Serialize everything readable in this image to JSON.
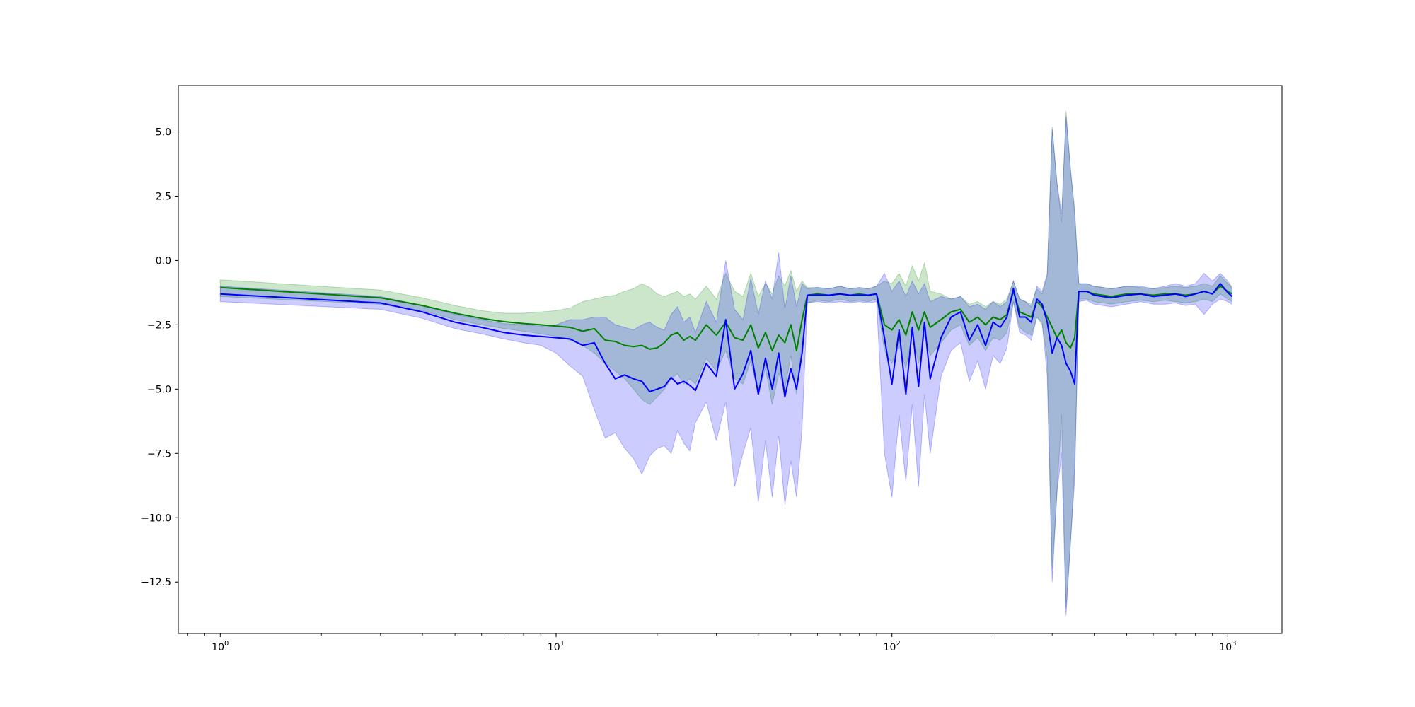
{
  "chart_data": {
    "type": "line",
    "title": "",
    "xlabel": "",
    "ylabel": "",
    "x_scale": "log",
    "xlim": [
      0.75,
      1450
    ],
    "ylim": [
      -14.5,
      6.8
    ],
    "grid": false,
    "legend": "none",
    "x_ticks": [
      {
        "value": 1,
        "base": "10",
        "exp": "0"
      },
      {
        "value": 10,
        "base": "10",
        "exp": "1"
      },
      {
        "value": 100,
        "base": "10",
        "exp": "2"
      },
      {
        "value": 1000,
        "base": "10",
        "exp": "3"
      }
    ],
    "y_ticks": [
      {
        "value": 5.0,
        "label": "5.0"
      },
      {
        "value": 2.5,
        "label": "2.5"
      },
      {
        "value": 0.0,
        "label": "0.0"
      },
      {
        "value": -2.5,
        "label": "−2.5"
      },
      {
        "value": -5.0,
        "label": "−5.0"
      },
      {
        "value": -7.5,
        "label": "−7.5"
      },
      {
        "value": -10.0,
        "label": "−10.0"
      },
      {
        "value": -12.5,
        "label": "−12.5"
      }
    ],
    "series": [
      {
        "color": "#008000",
        "band_color": "#008000",
        "x": [
          1,
          3,
          4,
          5,
          6,
          7,
          8,
          9,
          10,
          11,
          12,
          13,
          14,
          15,
          16,
          17,
          18,
          19,
          20,
          21,
          22,
          23,
          24,
          25,
          26,
          28,
          30,
          32,
          34,
          36,
          38,
          40,
          42,
          44,
          46,
          48,
          50,
          52,
          54,
          56,
          60,
          65,
          70,
          75,
          80,
          85,
          90,
          95,
          100,
          105,
          110,
          115,
          120,
          125,
          130,
          140,
          150,
          160,
          170,
          180,
          190,
          200,
          210,
          220,
          230,
          240,
          250,
          260,
          270,
          280,
          290,
          300,
          310,
          320,
          330,
          340,
          350,
          360,
          380,
          400,
          450,
          500,
          550,
          600,
          650,
          700,
          750,
          800,
          850,
          900,
          950,
          1000,
          1030
        ],
        "y": [
          -1.05,
          -1.45,
          -1.75,
          -2.05,
          -2.25,
          -2.38,
          -2.45,
          -2.5,
          -2.55,
          -2.6,
          -2.75,
          -2.65,
          -3.1,
          -3.15,
          -3.3,
          -3.35,
          -3.3,
          -3.45,
          -3.4,
          -3.2,
          -2.9,
          -2.8,
          -3.1,
          -2.95,
          -3.1,
          -2.5,
          -2.9,
          -2.4,
          -3.0,
          -3.1,
          -2.5,
          -3.4,
          -2.8,
          -3.5,
          -2.9,
          -3.2,
          -2.5,
          -3.5,
          -2.3,
          -1.35,
          -1.3,
          -1.35,
          -1.3,
          -1.35,
          -1.3,
          -1.35,
          -1.3,
          -2.5,
          -2.7,
          -2.3,
          -2.9,
          -2.0,
          -2.7,
          -2.0,
          -2.6,
          -2.3,
          -2.0,
          -1.9,
          -2.4,
          -2.2,
          -2.5,
          -2.2,
          -2.3,
          -2.1,
          -1.2,
          -2.0,
          -2.1,
          -2.2,
          -1.6,
          -1.8,
          -2.2,
          -2.6,
          -3.0,
          -2.7,
          -3.2,
          -3.4,
          -3.0,
          -1.2,
          -1.2,
          -1.3,
          -1.4,
          -1.3,
          -1.3,
          -1.35,
          -1.3,
          -1.3,
          -1.35,
          -1.3,
          -1.2,
          -1.3,
          -1.0,
          -1.2,
          -1.3
        ],
        "lower": [
          -1.4,
          -1.7,
          -1.95,
          -2.3,
          -2.5,
          -2.65,
          -2.75,
          -2.85,
          -2.95,
          -3.1,
          -3.3,
          -3.6,
          -4.0,
          -4.3,
          -4.6,
          -5.0,
          -5.4,
          -5.6,
          -5.3,
          -5.0,
          -4.6,
          -4.4,
          -4.8,
          -4.6,
          -4.8,
          -3.8,
          -4.3,
          -3.5,
          -4.6,
          -4.8,
          -3.9,
          -5.2,
          -4.2,
          -5.6,
          -4.4,
          -5.0,
          -3.7,
          -5.2,
          -3.2,
          -1.65,
          -1.55,
          -1.6,
          -1.5,
          -1.6,
          -1.55,
          -1.6,
          -1.5,
          -3.5,
          -4.0,
          -3.3,
          -4.2,
          -2.8,
          -4.0,
          -2.9,
          -3.7,
          -3.2,
          -2.7,
          -2.5,
          -3.3,
          -3.0,
          -3.5,
          -3.0,
          -3.1,
          -2.8,
          -1.6,
          -2.6,
          -2.8,
          -2.9,
          -2.2,
          -2.5,
          -3.8,
          -12.0,
          -9.0,
          -6.0,
          -13.5,
          -11.0,
          -8.0,
          -1.5,
          -1.5,
          -1.6,
          -1.7,
          -1.6,
          -1.55,
          -1.6,
          -1.55,
          -1.6,
          -1.65,
          -1.6,
          -1.5,
          -1.6,
          -1.3,
          -1.5,
          -1.6
        ],
        "upper": [
          -0.75,
          -1.15,
          -1.45,
          -1.75,
          -1.95,
          -2.05,
          -2.05,
          -2.0,
          -1.95,
          -1.85,
          -1.6,
          -1.5,
          -1.4,
          -1.35,
          -1.2,
          -1.1,
          -0.9,
          -1.05,
          -1.3,
          -1.4,
          -1.3,
          -1.2,
          -1.4,
          -1.3,
          -1.5,
          -1.0,
          -1.5,
          -0.5,
          -1.2,
          -1.4,
          -0.5,
          -1.4,
          -0.9,
          -1.3,
          -0.6,
          -1.0,
          -0.4,
          -1.2,
          -0.8,
          -1.05,
          -1.05,
          -1.1,
          -1.0,
          -1.1,
          -1.05,
          -1.1,
          -1.0,
          -0.8,
          -0.9,
          -0.5,
          -1.0,
          -0.2,
          -0.8,
          -0.1,
          -1.2,
          -1.3,
          -1.5,
          -1.4,
          -1.7,
          -1.6,
          -1.8,
          -1.6,
          -1.7,
          -1.5,
          -0.8,
          -1.5,
          -1.6,
          -1.7,
          -1.1,
          -1.3,
          -0.6,
          5.2,
          3.0,
          1.5,
          5.8,
          3.5,
          2.0,
          -0.9,
          -0.9,
          -1.0,
          -1.1,
          -1.0,
          -1.05,
          -1.1,
          -1.05,
          -1.0,
          -1.05,
          -1.0,
          -0.9,
          -1.0,
          -0.6,
          -0.9,
          -1.0
        ]
      },
      {
        "color": "#0000ff",
        "band_color": "#0000ff",
        "x": [
          1,
          3,
          4,
          5,
          6,
          7,
          8,
          9,
          10,
          11,
          12,
          13,
          14,
          15,
          16,
          17,
          18,
          19,
          20,
          21,
          22,
          23,
          24,
          25,
          26,
          28,
          30,
          32,
          34,
          36,
          38,
          40,
          42,
          44,
          46,
          48,
          50,
          52,
          54,
          56,
          60,
          65,
          70,
          75,
          80,
          85,
          90,
          95,
          100,
          105,
          110,
          115,
          120,
          125,
          130,
          140,
          150,
          160,
          170,
          180,
          190,
          200,
          210,
          220,
          230,
          240,
          250,
          260,
          270,
          280,
          290,
          300,
          310,
          320,
          330,
          340,
          350,
          360,
          380,
          400,
          450,
          500,
          550,
          600,
          650,
          700,
          750,
          800,
          850,
          900,
          950,
          1000,
          1030
        ],
        "y": [
          -1.3,
          -1.65,
          -2.0,
          -2.4,
          -2.6,
          -2.8,
          -2.9,
          -2.95,
          -3.0,
          -3.05,
          -3.3,
          -3.2,
          -4.0,
          -4.6,
          -4.45,
          -4.6,
          -4.7,
          -5.1,
          -5.0,
          -4.9,
          -4.55,
          -4.8,
          -4.7,
          -4.85,
          -5.05,
          -4.0,
          -4.5,
          -2.3,
          -5.0,
          -4.4,
          -3.5,
          -5.2,
          -3.8,
          -5.0,
          -3.6,
          -5.3,
          -4.2,
          -5.0,
          -3.6,
          -1.35,
          -1.35,
          -1.35,
          -1.3,
          -1.35,
          -1.35,
          -1.35,
          -1.3,
          -3.0,
          -4.8,
          -2.7,
          -5.2,
          -2.6,
          -4.9,
          -2.4,
          -4.6,
          -3.0,
          -2.2,
          -2.0,
          -3.1,
          -2.5,
          -3.3,
          -2.4,
          -2.6,
          -2.2,
          -1.1,
          -2.2,
          -2.2,
          -2.4,
          -1.5,
          -1.7,
          -2.4,
          -3.6,
          -3.0,
          -3.3,
          -4.0,
          -4.3,
          -4.8,
          -1.2,
          -1.2,
          -1.35,
          -1.45,
          -1.35,
          -1.3,
          -1.4,
          -1.35,
          -1.3,
          -1.4,
          -1.3,
          -1.2,
          -1.3,
          -0.9,
          -1.25,
          -1.4
        ],
        "lower": [
          -1.6,
          -1.9,
          -2.25,
          -2.65,
          -2.85,
          -3.05,
          -3.2,
          -3.3,
          -3.6,
          -4.1,
          -4.5,
          -5.8,
          -6.9,
          -6.7,
          -7.3,
          -7.7,
          -8.3,
          -7.6,
          -7.3,
          -7.2,
          -7.5,
          -6.6,
          -7.1,
          -7.4,
          -6.3,
          -5.5,
          -7.0,
          -5.5,
          -8.8,
          -7.5,
          -6.5,
          -9.4,
          -7.0,
          -9.2,
          -6.8,
          -9.5,
          -7.8,
          -9.2,
          -6.5,
          -1.65,
          -1.6,
          -1.65,
          -1.6,
          -1.65,
          -1.6,
          -1.65,
          -1.6,
          -7.5,
          -9.2,
          -6.0,
          -8.6,
          -5.6,
          -8.8,
          -5.2,
          -7.5,
          -4.5,
          -3.5,
          -3.2,
          -4.7,
          -3.9,
          -5.0,
          -3.7,
          -4.0,
          -3.4,
          -1.6,
          -2.8,
          -2.9,
          -3.1,
          -2.2,
          -2.4,
          -4.5,
          -12.5,
          -9.0,
          -7.5,
          -13.8,
          -11.0,
          -8.5,
          -1.6,
          -1.55,
          -1.7,
          -1.8,
          -1.7,
          -1.6,
          -1.7,
          -1.7,
          -1.65,
          -1.75,
          -1.7,
          -2.1,
          -1.7,
          -1.5,
          -1.6,
          -1.7
        ],
        "upper": [
          -1.0,
          -1.4,
          -1.75,
          -2.1,
          -2.3,
          -2.45,
          -2.5,
          -2.55,
          -2.5,
          -2.3,
          -2.3,
          -2.2,
          -2.2,
          -2.5,
          -2.6,
          -2.7,
          -2.5,
          -2.4,
          -2.6,
          -2.7,
          -2.1,
          -1.8,
          -2.4,
          -2.2,
          -2.8,
          -1.6,
          -2.4,
          0.0,
          -1.9,
          -2.3,
          -0.7,
          -2.1,
          -0.8,
          -1.5,
          0.3,
          -1.9,
          -0.6,
          -1.8,
          -0.9,
          -1.1,
          -1.05,
          -1.1,
          -1.0,
          -1.1,
          -1.05,
          -1.1,
          -1.0,
          -0.5,
          -1.2,
          -0.8,
          -1.4,
          -0.8,
          -1.3,
          -0.9,
          -1.6,
          -1.4,
          -1.5,
          -1.4,
          -1.8,
          -1.7,
          -1.9,
          -1.6,
          -1.8,
          -1.6,
          -0.8,
          -1.5,
          -1.6,
          -1.8,
          -1.0,
          -1.2,
          -0.5,
          5.1,
          3.0,
          1.8,
          5.6,
          3.6,
          1.8,
          -0.9,
          -0.9,
          -1.0,
          -1.1,
          -1.0,
          -1.0,
          -1.1,
          -1.0,
          -0.9,
          -1.0,
          -0.9,
          -0.5,
          -0.8,
          -0.5,
          -0.8,
          -1.1
        ]
      }
    ]
  }
}
